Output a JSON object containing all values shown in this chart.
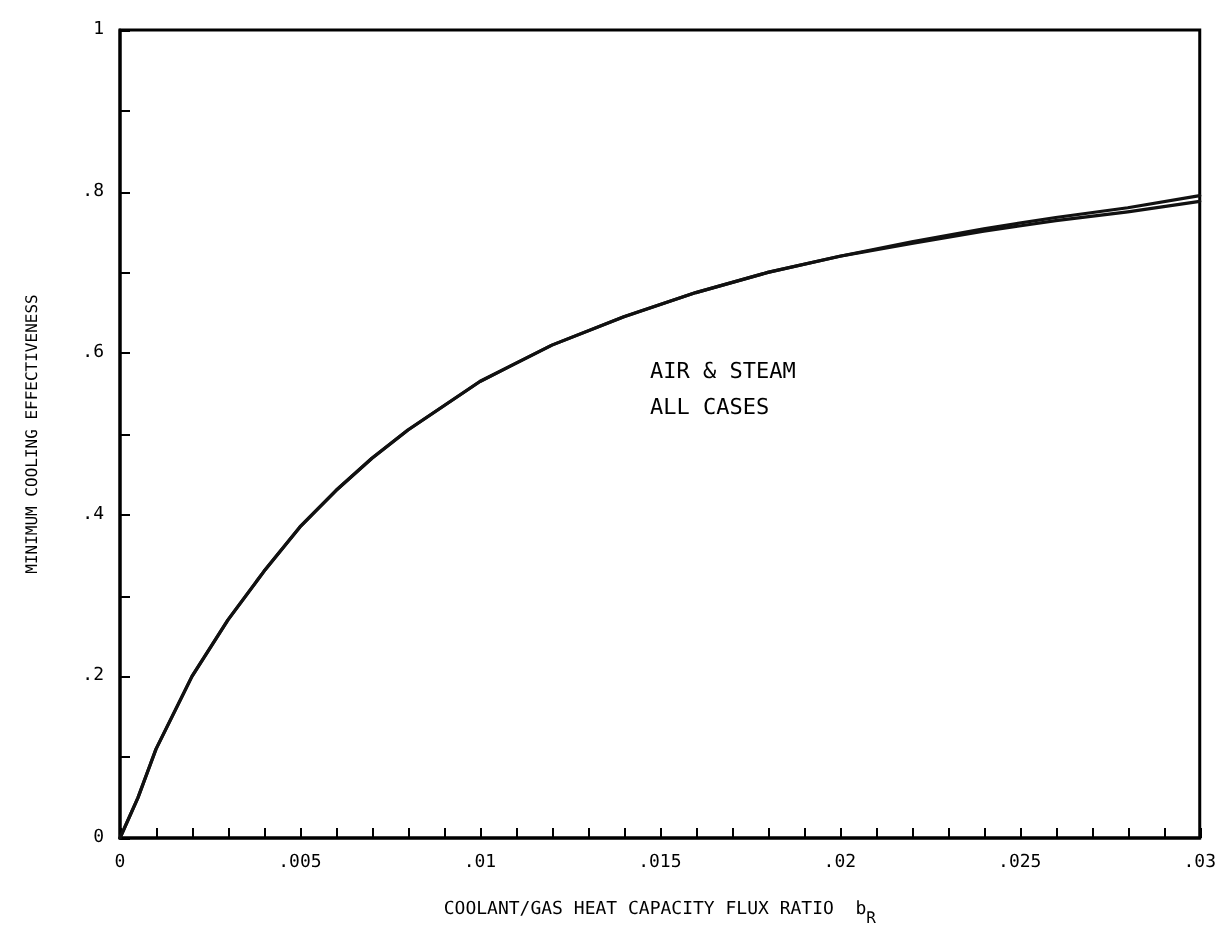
{
  "chart_data": {
    "type": "line",
    "xlabel": "COOLANT/GAS HEAT CAPACITY FLUX RATIO  b$_{R}$",
    "ylabel": "MINIMUM COOLING EFFECTIVENESS",
    "annotations": [
      "AIR & STEAM",
      "ALL CASES"
    ],
    "x": [
      0,
      0.0005,
      0.001,
      0.002,
      0.003,
      0.004,
      0.005,
      0.006,
      0.007,
      0.008,
      0.009,
      0.01,
      0.012,
      0.014,
      0.016,
      0.018,
      0.02,
      0.022,
      0.024,
      0.026,
      0.028,
      0.03
    ],
    "series": [
      {
        "color": "#111111",
        "values": [
          0,
          0.05,
          0.11,
          0.2,
          0.27,
          0.33,
          0.385,
          0.43,
          0.47,
          0.505,
          0.535,
          0.565,
          0.61,
          0.645,
          0.675,
          0.7,
          0.72,
          0.738,
          0.754,
          0.768,
          0.78,
          0.795
        ]
      },
      {
        "color": "#111111",
        "values": [
          0,
          0.05,
          0.11,
          0.2,
          0.27,
          0.33,
          0.385,
          0.43,
          0.47,
          0.505,
          0.535,
          0.565,
          0.61,
          0.645,
          0.675,
          0.7,
          0.72,
          0.736,
          0.751,
          0.764,
          0.775,
          0.788
        ]
      }
    ],
    "xlim": [
      0,
      0.03
    ],
    "xticks": [
      {
        "value": 0,
        "label": "0"
      },
      {
        "value": 0.001,
        "label": null
      },
      {
        "value": 0.002,
        "label": null
      },
      {
        "value": 0.003,
        "label": null
      },
      {
        "value": 0.004,
        "label": null
      },
      {
        "value": 0.005,
        "label": ".005"
      },
      {
        "value": 0.006,
        "label": null
      },
      {
        "value": 0.007,
        "label": null
      },
      {
        "value": 0.008,
        "label": null
      },
      {
        "value": 0.009,
        "label": null
      },
      {
        "value": 0.01,
        "label": ".01"
      },
      {
        "value": 0.011,
        "label": null
      },
      {
        "value": 0.012,
        "label": null
      },
      {
        "value": 0.013,
        "label": null
      },
      {
        "value": 0.014,
        "label": null
      },
      {
        "value": 0.015,
        "label": ".015"
      },
      {
        "value": 0.016,
        "label": null
      },
      {
        "value": 0.017,
        "label": null
      },
      {
        "value": 0.018,
        "label": null
      },
      {
        "value": 0.019,
        "label": null
      },
      {
        "value": 0.02,
        "label": ".02"
      },
      {
        "value": 0.021,
        "label": null
      },
      {
        "value": 0.022,
        "label": null
      },
      {
        "value": 0.023,
        "label": null
      },
      {
        "value": 0.024,
        "label": null
      },
      {
        "value": 0.025,
        "label": ".025"
      },
      {
        "value": 0.026,
        "label": null
      },
      {
        "value": 0.027,
        "label": null
      },
      {
        "value": 0.028,
        "label": null
      },
      {
        "value": 0.029,
        "label": null
      },
      {
        "value": 0.03,
        "label": ".03"
      }
    ],
    "ylim": [
      0,
      1
    ],
    "yticks": [
      {
        "value": 0,
        "label": "0"
      },
      {
        "value": 0.1,
        "label": null
      },
      {
        "value": 0.2,
        "label": ".2"
      },
      {
        "value": 0.3,
        "label": null
      },
      {
        "value": 0.4,
        "label": ".4"
      },
      {
        "value": 0.5,
        "label": null
      },
      {
        "value": 0.6,
        "label": ".6"
      },
      {
        "value": 0.7,
        "label": null
      },
      {
        "value": 0.8,
        "label": ".8"
      },
      {
        "value": 0.9,
        "label": null
      },
      {
        "value": 1,
        "label": "1"
      }
    ],
    "grid": false,
    "marker": "none",
    "line_style": "solid"
  }
}
